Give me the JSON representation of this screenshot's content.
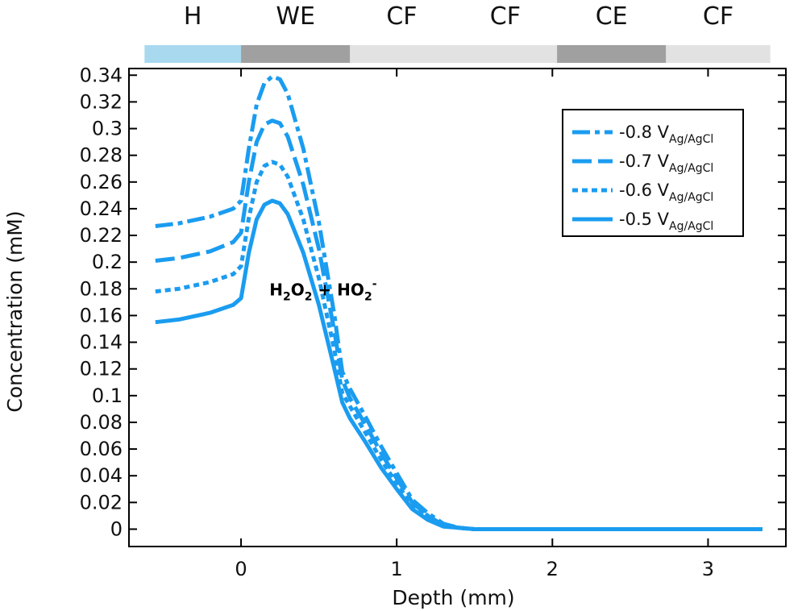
{
  "chart_data": {
    "type": "line",
    "title": "",
    "xlabel": "Depth (mm)",
    "ylabel": "Concentration (mM)",
    "xlim": [
      -0.72,
      3.5
    ],
    "ylim": [
      -0.013,
      0.345
    ],
    "x_ticks": [
      0,
      1,
      2,
      3
    ],
    "y_ticks": [
      0,
      0.02,
      0.04,
      0.06,
      0.08,
      0.1,
      0.12,
      0.14,
      0.16,
      0.18,
      0.2,
      0.22,
      0.24,
      0.26,
      0.28,
      0.3,
      0.32,
      0.34
    ],
    "x_tick_labels": [
      "0",
      "1",
      "2",
      "3"
    ],
    "y_tick_labels": [
      "0",
      "0.02",
      "0.04",
      "0.06",
      "0.08",
      "0.1",
      "0.12",
      "0.14",
      "0.16",
      "0.18",
      "0.2",
      "0.22",
      "0.24",
      "0.26",
      "0.28",
      "0.3",
      "0.32",
      "0.34"
    ],
    "grid": false,
    "legend_position": "top-right",
    "color": "#1a9cf0",
    "regions": [
      {
        "label": "H",
        "x_start": -0.62,
        "x_end": 0.0,
        "color": "#a9d9ef"
      },
      {
        "label": "WE",
        "x_start": 0.0,
        "x_end": 0.7,
        "color": "#a0a0a0"
      },
      {
        "label": "CF",
        "x_start": 0.7,
        "x_end": 2.03,
        "color": "#e2e2e2"
      },
      {
        "label": "CF",
        "x_start": 0.7,
        "x_end": 2.03,
        "color": "#e2e2e2"
      },
      {
        "label": "CE",
        "x_start": 2.03,
        "x_end": 2.73,
        "color": "#a0a0a0"
      },
      {
        "label": "CF",
        "x_start": 2.73,
        "x_end": 3.4,
        "color": "#e2e2e2"
      }
    ],
    "annotation": {
      "main_1": "H",
      "sub_1": "2",
      "main_2": "O",
      "sub_2": "2",
      "main_3": " + HO",
      "sub_3": "2",
      "sup": "-",
      "x": 0.7,
      "y": 0.178
    },
    "series": [
      {
        "name": "-0.8 V",
        "name_sub": "Ag/AgCl",
        "dash": "dashdot",
        "x": [
          -0.55,
          -0.4,
          -0.2,
          -0.05,
          0.0,
          0.05,
          0.1,
          0.15,
          0.2,
          0.25,
          0.3,
          0.4,
          0.5,
          0.6,
          0.65,
          0.7,
          0.8,
          0.9,
          1.0,
          1.1,
          1.2,
          1.3,
          1.4,
          1.5,
          1.7,
          2.0,
          2.5,
          3.0,
          3.35
        ],
        "y": [
          0.227,
          0.229,
          0.234,
          0.24,
          0.246,
          0.285,
          0.318,
          0.334,
          0.339,
          0.337,
          0.326,
          0.285,
          0.23,
          0.16,
          0.118,
          0.105,
          0.084,
          0.062,
          0.042,
          0.022,
          0.012,
          0.004,
          0.001,
          0.0,
          0.0,
          0.0,
          0.0,
          0.0,
          0.0
        ]
      },
      {
        "name": "-0.7 V",
        "name_sub": "Ag/AgCl",
        "dash": "dash",
        "x": [
          -0.55,
          -0.4,
          -0.2,
          -0.05,
          0.0,
          0.05,
          0.1,
          0.15,
          0.2,
          0.25,
          0.3,
          0.4,
          0.5,
          0.6,
          0.65,
          0.7,
          0.8,
          0.9,
          1.0,
          1.1,
          1.2,
          1.3,
          1.4,
          1.5,
          1.7,
          2.0,
          2.5,
          3.0,
          3.35
        ],
        "y": [
          0.201,
          0.203,
          0.208,
          0.215,
          0.222,
          0.26,
          0.29,
          0.303,
          0.306,
          0.304,
          0.294,
          0.258,
          0.21,
          0.148,
          0.112,
          0.098,
          0.078,
          0.057,
          0.038,
          0.02,
          0.01,
          0.003,
          0.001,
          0.0,
          0.0,
          0.0,
          0.0,
          0.0,
          0.0
        ]
      },
      {
        "name": "-0.6 V",
        "name_sub": "Ag/AgCl",
        "dash": "dot",
        "x": [
          -0.55,
          -0.4,
          -0.2,
          -0.05,
          0.0,
          0.05,
          0.1,
          0.15,
          0.2,
          0.25,
          0.3,
          0.4,
          0.5,
          0.6,
          0.65,
          0.7,
          0.8,
          0.9,
          1.0,
          1.1,
          1.2,
          1.3,
          1.4,
          1.5,
          1.7,
          2.0,
          2.5,
          3.0,
          3.35
        ],
        "y": [
          0.178,
          0.18,
          0.185,
          0.191,
          0.197,
          0.233,
          0.26,
          0.272,
          0.275,
          0.273,
          0.264,
          0.232,
          0.188,
          0.134,
          0.102,
          0.092,
          0.072,
          0.052,
          0.034,
          0.018,
          0.009,
          0.003,
          0.001,
          0.0,
          0.0,
          0.0,
          0.0,
          0.0,
          0.0
        ]
      },
      {
        "name": "-0.5 V",
        "name_sub": "Ag/AgCl",
        "dash": "solid",
        "x": [
          -0.55,
          -0.4,
          -0.2,
          -0.05,
          0.0,
          0.05,
          0.1,
          0.15,
          0.2,
          0.25,
          0.3,
          0.4,
          0.5,
          0.6,
          0.65,
          0.7,
          0.8,
          0.9,
          1.0,
          1.1,
          1.2,
          1.3,
          1.4,
          1.5,
          1.7,
          2.0,
          2.5,
          3.0,
          3.35
        ],
        "y": [
          0.155,
          0.157,
          0.162,
          0.168,
          0.173,
          0.207,
          0.232,
          0.243,
          0.246,
          0.244,
          0.236,
          0.207,
          0.168,
          0.12,
          0.095,
          0.083,
          0.065,
          0.046,
          0.03,
          0.015,
          0.007,
          0.002,
          0.001,
          0.0,
          0.0,
          0.0,
          0.0,
          0.0,
          0.0
        ]
      }
    ]
  }
}
